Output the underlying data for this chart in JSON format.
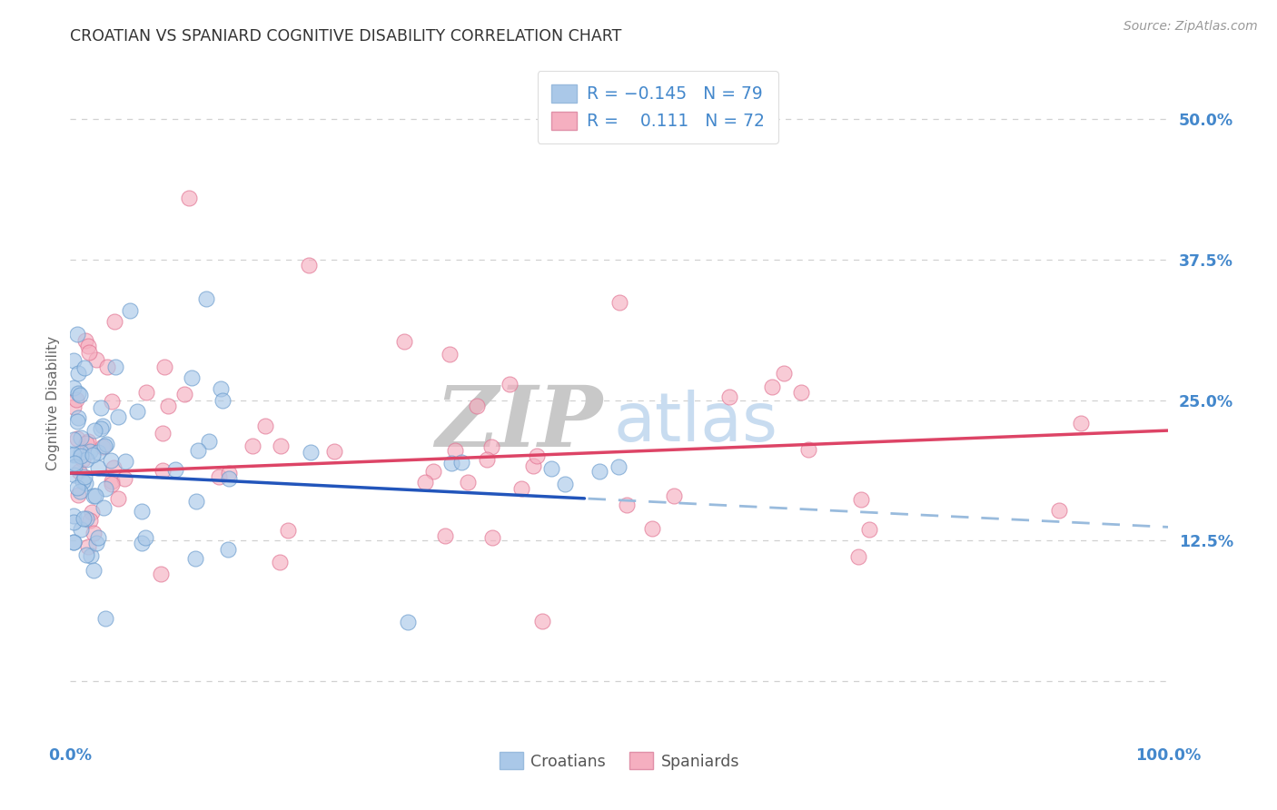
{
  "title": "CROATIAN VS SPANIARD COGNITIVE DISABILITY CORRELATION CHART",
  "source": "Source: ZipAtlas.com",
  "ylabel": "Cognitive Disability",
  "yticks": [
    0.0,
    0.125,
    0.25,
    0.375,
    0.5
  ],
  "ytick_labels": [
    "",
    "12.5%",
    "25.0%",
    "37.5%",
    "50.0%"
  ],
  "xtick_left": "0.0%",
  "xtick_right": "100.0%",
  "xlim": [
    0.0,
    1.0
  ],
  "ylim": [
    -0.05,
    0.545
  ],
  "croatian_r": -0.145,
  "croatian_n": 79,
  "spaniard_r": 0.111,
  "spaniard_n": 72,
  "croatian_face_color": "#aac8e8",
  "spaniard_face_color": "#f5afc0",
  "croatian_edge_color": "#6699cc",
  "spaniard_edge_color": "#e07090",
  "croatian_line_color": "#2255bb",
  "spaniard_line_color": "#dd4466",
  "dashed_color": "#99bbdd",
  "background_color": "#ffffff",
  "grid_color": "#cccccc",
  "title_color": "#333333",
  "axis_label_color": "#4488cc",
  "watermark_zip_color": "#c8c8c8",
  "watermark_atlas_color": "#c8dcf0",
  "source_color": "#999999",
  "legend_label_color": "#4488cc",
  "bottom_legend_color": "#555555",
  "trend_line_intercept_y": 0.185,
  "croatian_trend_slope": -0.048,
  "spaniard_trend_slope": 0.038
}
